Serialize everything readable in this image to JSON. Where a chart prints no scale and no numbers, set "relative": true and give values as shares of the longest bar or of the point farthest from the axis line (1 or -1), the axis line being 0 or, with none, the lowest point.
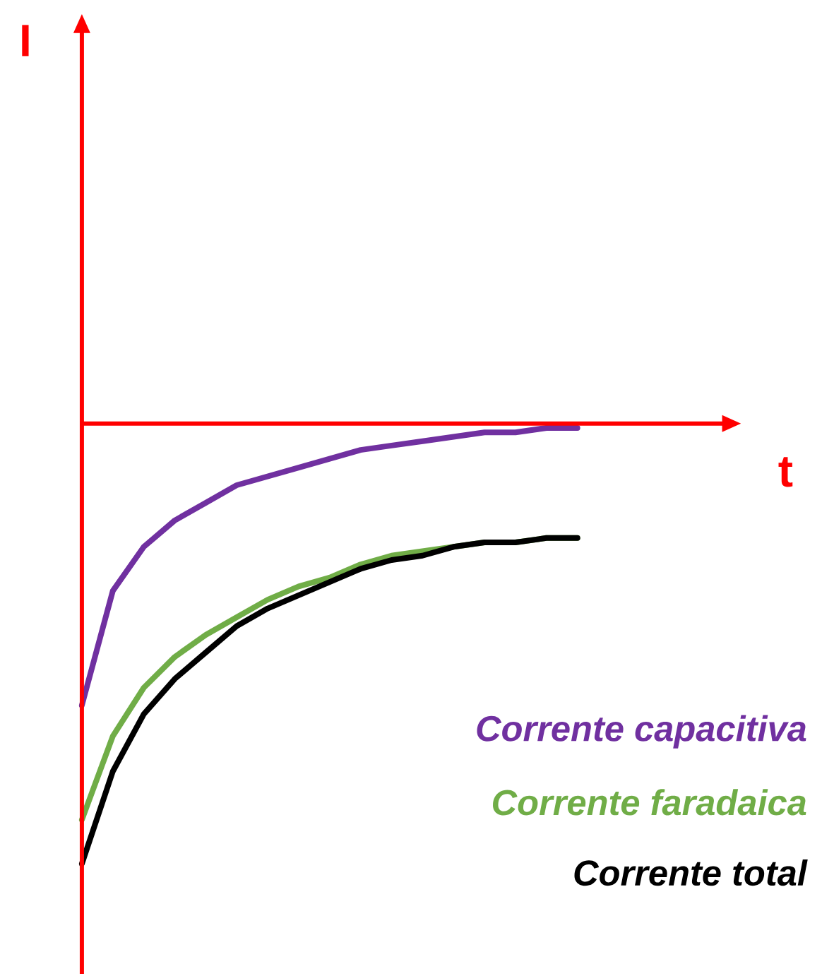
{
  "chart_data": {
    "type": "line",
    "relative": true,
    "xlabel": "t",
    "annotations": [
      "I"
    ],
    "categories": [
      null,
      null,
      null,
      null,
      null,
      null,
      null,
      null,
      null,
      null,
      null,
      null,
      null,
      null,
      null,
      null,
      null
    ],
    "series": [
      {
        "name": "Corrente capacitiva",
        "color": "#7030a0",
        "values": [
          -0.64,
          -0.38,
          -0.28,
          -0.22,
          -0.18,
          -0.14,
          -0.12,
          -0.1,
          -0.08,
          -0.06,
          -0.05,
          -0.04,
          -0.03,
          -0.02,
          -0.02,
          -0.01,
          -0.01
        ]
      },
      {
        "name": "Corrente faradaica",
        "color": "#70ad47",
        "values": [
          -0.9,
          -0.71,
          -0.6,
          -0.53,
          -0.48,
          -0.44,
          -0.4,
          -0.37,
          -0.35,
          -0.32,
          -0.3,
          -0.29,
          -0.28,
          -0.27,
          -0.27,
          -0.26,
          -0.26
        ]
      },
      {
        "name": "Corrente total",
        "color": "#000000",
        "values": [
          -1.0,
          -0.79,
          -0.66,
          -0.58,
          -0.52,
          -0.46,
          -0.42,
          -0.39,
          -0.36,
          -0.33,
          -0.31,
          -0.3,
          -0.28,
          -0.27,
          -0.27,
          -0.26,
          -0.26
        ]
      }
    ]
  }
}
